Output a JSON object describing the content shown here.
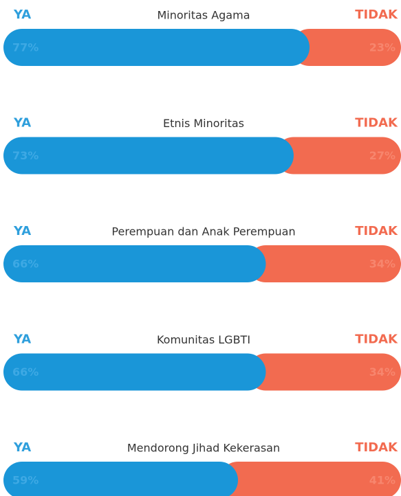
{
  "chart_data": {
    "type": "bar",
    "orientation": "horizontal",
    "stacked": true,
    "categories": [
      "Minoritas Agama",
      "Etnis Minoritas",
      "Perempuan dan Anak Perempuan",
      "Komunitas LGBTI",
      "Mendorong Jihad Kekerasan"
    ],
    "xlim": [
      0,
      100
    ],
    "series": [
      {
        "name": "YA",
        "color": "#1a96d8",
        "label_color": "#2f9fdc",
        "values": [
          77,
          73,
          66,
          66,
          59
        ],
        "value_labels": [
          "77%",
          "73%",
          "66%",
          "66%",
          "59%"
        ]
      },
      {
        "name": "TIDAK",
        "color": "#f26b50",
        "label_color": "#f26b50",
        "values": [
          23,
          27,
          34,
          34,
          41
        ],
        "value_labels": [
          "23%",
          "27%",
          "34%",
          "34%",
          "41%"
        ]
      }
    ]
  }
}
